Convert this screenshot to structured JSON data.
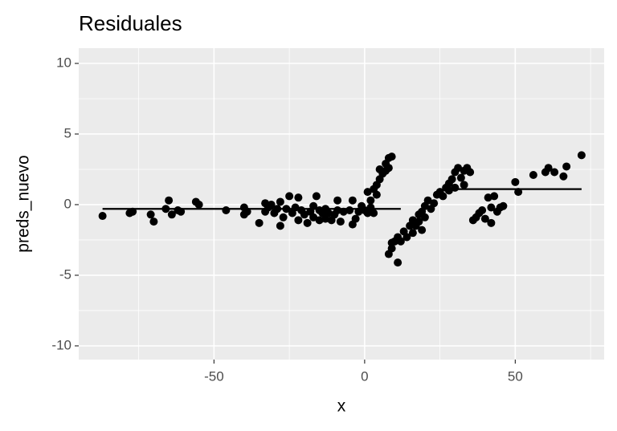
{
  "chart_data": {
    "type": "scatter",
    "title": "Residuales",
    "xlabel": "x",
    "ylabel": "preds_nuevo",
    "x": [
      -87,
      -78,
      -77,
      -71,
      -70,
      -66,
      -65,
      -64,
      -62,
      -61,
      -56,
      -55,
      -46,
      -40,
      -40,
      -39,
      -35,
      -33,
      -33,
      -32,
      -31,
      -30,
      -29,
      -28,
      -28,
      -27,
      -26,
      -25,
      -24,
      -23,
      -22,
      -22,
      -21,
      -20,
      -19,
      -18,
      -17,
      -17,
      -16,
      -15,
      -15,
      -14,
      -13,
      -13,
      -12,
      -11,
      -10,
      -9,
      -9,
      -8,
      -7,
      -5,
      -4,
      -4,
      -3,
      -2,
      -1,
      0,
      1,
      1,
      2,
      2,
      3,
      3,
      4,
      4,
      5,
      5,
      6,
      7,
      7,
      8,
      8,
      9,
      8,
      9,
      9,
      10,
      11,
      11,
      12,
      13,
      14,
      15,
      16,
      16,
      17,
      18,
      18,
      19,
      19,
      20,
      20,
      21,
      22,
      23,
      24,
      25,
      26,
      27,
      28,
      28,
      29,
      30,
      30,
      31,
      32,
      33,
      33,
      34,
      35,
      36,
      37,
      38,
      39,
      40,
      41,
      42,
      42,
      43,
      44,
      45,
      46,
      50,
      51,
      56,
      60,
      61,
      63,
      66,
      67,
      72
    ],
    "values": [
      -0.8,
      -0.6,
      -0.5,
      -0.7,
      -1.2,
      -0.3,
      0.3,
      -0.7,
      -0.4,
      -0.5,
      0.2,
      0,
      -0.4,
      -0.7,
      -0.2,
      -0.5,
      -1.3,
      0.1,
      -0.5,
      -0.2,
      0,
      -0.6,
      -0.3,
      0.2,
      -1.5,
      -0.9,
      -0.3,
      0.6,
      -0.6,
      -0.2,
      0.5,
      -1.1,
      -0.4,
      -0.7,
      -1.3,
      -0.5,
      -0.1,
      -0.9,
      0.6,
      -0.4,
      -1.1,
      -0.6,
      -1.0,
      -0.3,
      -0.6,
      -1.1,
      -0.7,
      0.3,
      -0.4,
      -1.2,
      -0.5,
      -0.4,
      -1.4,
      0.3,
      -1.0,
      -0.5,
      -0.1,
      -0.4,
      0.9,
      -0.6,
      -0.2,
      0.3,
      -0.6,
      1.1,
      0.7,
      1.4,
      1.8,
      2.5,
      2.2,
      2.9,
      2.4,
      3.3,
      2.6,
      3.4,
      -3.5,
      -3.1,
      -2.7,
      -2.6,
      -2.3,
      -4.1,
      -2.6,
      -1.9,
      -2.3,
      -1.5,
      -1.1,
      -2.0,
      -1.5,
      -0.7,
      -1.2,
      -0.5,
      -1.8,
      -0.9,
      -0.1,
      0.3,
      -0.3,
      0.1,
      0.7,
      0.9,
      0.6,
      1.2,
      1.0,
      1.5,
      1.8,
      1.2,
      2.3,
      2.6,
      1.9,
      1.4,
      2.4,
      2.6,
      2.3,
      -1.1,
      -0.9,
      -0.6,
      -0.4,
      -1.0,
      0.5,
      -1.3,
      -0.2,
      0.6,
      -0.5,
      -0.2,
      -0.1,
      1.6,
      0.9,
      2.1,
      2.3,
      2.6,
      2.3,
      2.0,
      2.7,
      3.5
    ],
    "color": "#000000",
    "line": {
      "x": [
        -87,
        12,
        null,
        31,
        72
      ],
      "values": [
        -0.3,
        -0.3,
        null,
        1.1,
        1.1
      ],
      "color": "#000000"
    },
    "xlim": [
      -94.9,
      79.5
    ],
    "ylim": [
      -10.97,
      11.08
    ],
    "xticks": [
      -50,
      0,
      50
    ],
    "yticks": [
      -10,
      -5,
      0,
      5,
      10
    ],
    "minor_xticks": [
      -75,
      -25,
      25,
      75
    ],
    "minor_yticks": [
      -7.5,
      -2.5,
      2.5,
      7.5
    ],
    "grid": true
  }
}
